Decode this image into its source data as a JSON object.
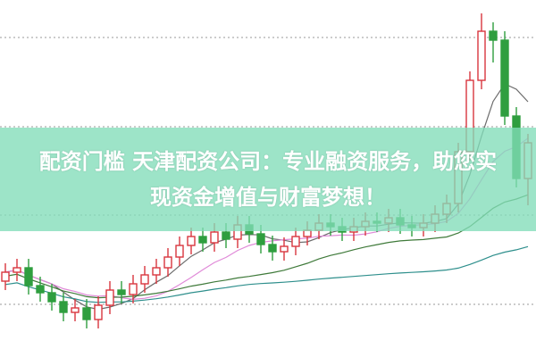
{
  "banner": {
    "line1": "配资门槛 天津配资公司：专业融资服务，助您实",
    "line2": "现资金增值与财富梦想！"
  },
  "colors": {
    "up": "#d9363e",
    "down": "#2f9e3f",
    "grid": "#9a9a9a",
    "banner": "#82dcb9",
    "ma": [
      "#6b6b6b",
      "#e08ad8",
      "#3f7a3a",
      "#2e8f8c"
    ]
  },
  "chart_data": {
    "type": "candlestick",
    "title": "",
    "xlabel": "",
    "ylabel": "",
    "ylim": [
      0,
      400
    ],
    "grid": "dotted horizontal",
    "moving_averages": [
      5,
      10,
      20,
      40
    ],
    "ohlc": [
      [
        85,
        105,
        75,
        95
      ],
      [
        95,
        110,
        85,
        100
      ],
      [
        100,
        110,
        70,
        80
      ],
      [
        80,
        90,
        62,
        72
      ],
      [
        72,
        82,
        52,
        62
      ],
      [
        62,
        72,
        40,
        50
      ],
      [
        50,
        65,
        40,
        55
      ],
      [
        55,
        65,
        32,
        42
      ],
      [
        42,
        68,
        32,
        58
      ],
      [
        58,
        85,
        48,
        75
      ],
      [
        75,
        85,
        60,
        70
      ],
      [
        70,
        92,
        60,
        82
      ],
      [
        82,
        102,
        72,
        92
      ],
      [
        92,
        110,
        82,
        100
      ],
      [
        100,
        122,
        90,
        112
      ],
      [
        112,
        135,
        102,
        125
      ],
      [
        125,
        145,
        115,
        135
      ],
      [
        135,
        145,
        118,
        128
      ],
      [
        128,
        150,
        118,
        140
      ],
      [
        140,
        150,
        122,
        132
      ],
      [
        132,
        158,
        122,
        148
      ],
      [
        148,
        158,
        128,
        138
      ],
      [
        138,
        148,
        116,
        126
      ],
      [
        126,
        136,
        108,
        118
      ],
      [
        118,
        134,
        108,
        124
      ],
      [
        124,
        145,
        114,
        135
      ],
      [
        135,
        152,
        125,
        142
      ],
      [
        142,
        160,
        132,
        150
      ],
      [
        150,
        160,
        136,
        146
      ],
      [
        146,
        156,
        130,
        140
      ],
      [
        140,
        156,
        130,
        146
      ],
      [
        146,
        162,
        136,
        152
      ],
      [
        152,
        162,
        140,
        150
      ],
      [
        150,
        166,
        140,
        156
      ],
      [
        156,
        166,
        138,
        148
      ],
      [
        148,
        158,
        135,
        145
      ],
      [
        145,
        160,
        135,
        150
      ],
      [
        150,
        170,
        140,
        160
      ],
      [
        160,
        182,
        150,
        172
      ],
      [
        172,
        240,
        162,
        230
      ],
      [
        230,
        320,
        220,
        310
      ],
      [
        310,
        385,
        300,
        365
      ],
      [
        365,
        375,
        330,
        355
      ],
      [
        355,
        365,
        260,
        270
      ],
      [
        270,
        280,
        190,
        200
      ],
      [
        200,
        250,
        170,
        240
      ]
    ]
  }
}
